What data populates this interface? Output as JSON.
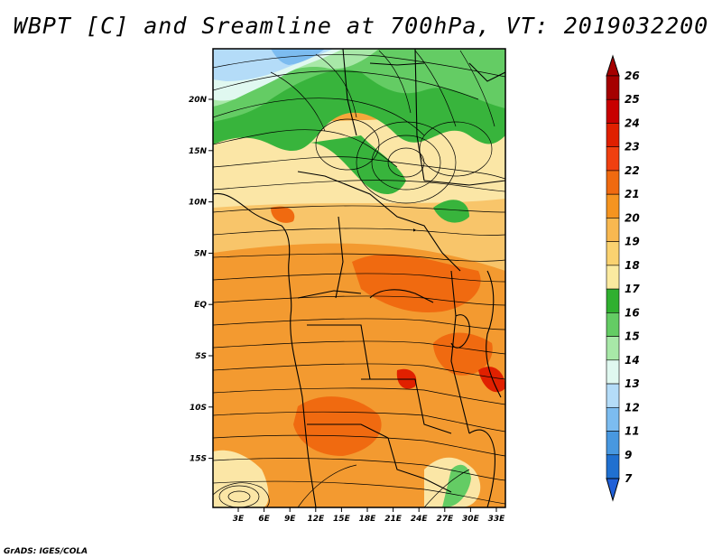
{
  "title": "WBPT [C] and Sreamline at 700hPa, VT: 2019032200",
  "credit": "GrADS: IGES/COLA",
  "lat_labels": [
    "20N",
    "15N",
    "10N",
    "5N",
    "EQ",
    "5S",
    "10S",
    "15S"
  ],
  "lon_labels": [
    "3E",
    "6E",
    "9E",
    "12E",
    "15E",
    "18E",
    "21E",
    "24E",
    "27E",
    "30E",
    "33E"
  ],
  "colorbar": {
    "labels": [
      "26",
      "25",
      "24",
      "23",
      "22",
      "21",
      "20",
      "19",
      "18",
      "17",
      "16",
      "15",
      "14",
      "13",
      "12",
      "11",
      "9",
      "7"
    ],
    "colors": [
      "#a50000",
      "#c80000",
      "#e02000",
      "#f04010",
      "#f06a10",
      "#f59420",
      "#f8b850",
      "#fad270",
      "#fbeaa0",
      "#30b030",
      "#64cc64",
      "#a8e8a8",
      "#e0f8f0",
      "#b4dcf8",
      "#7cbcf0",
      "#4898e0",
      "#2070d0"
    ]
  }
}
